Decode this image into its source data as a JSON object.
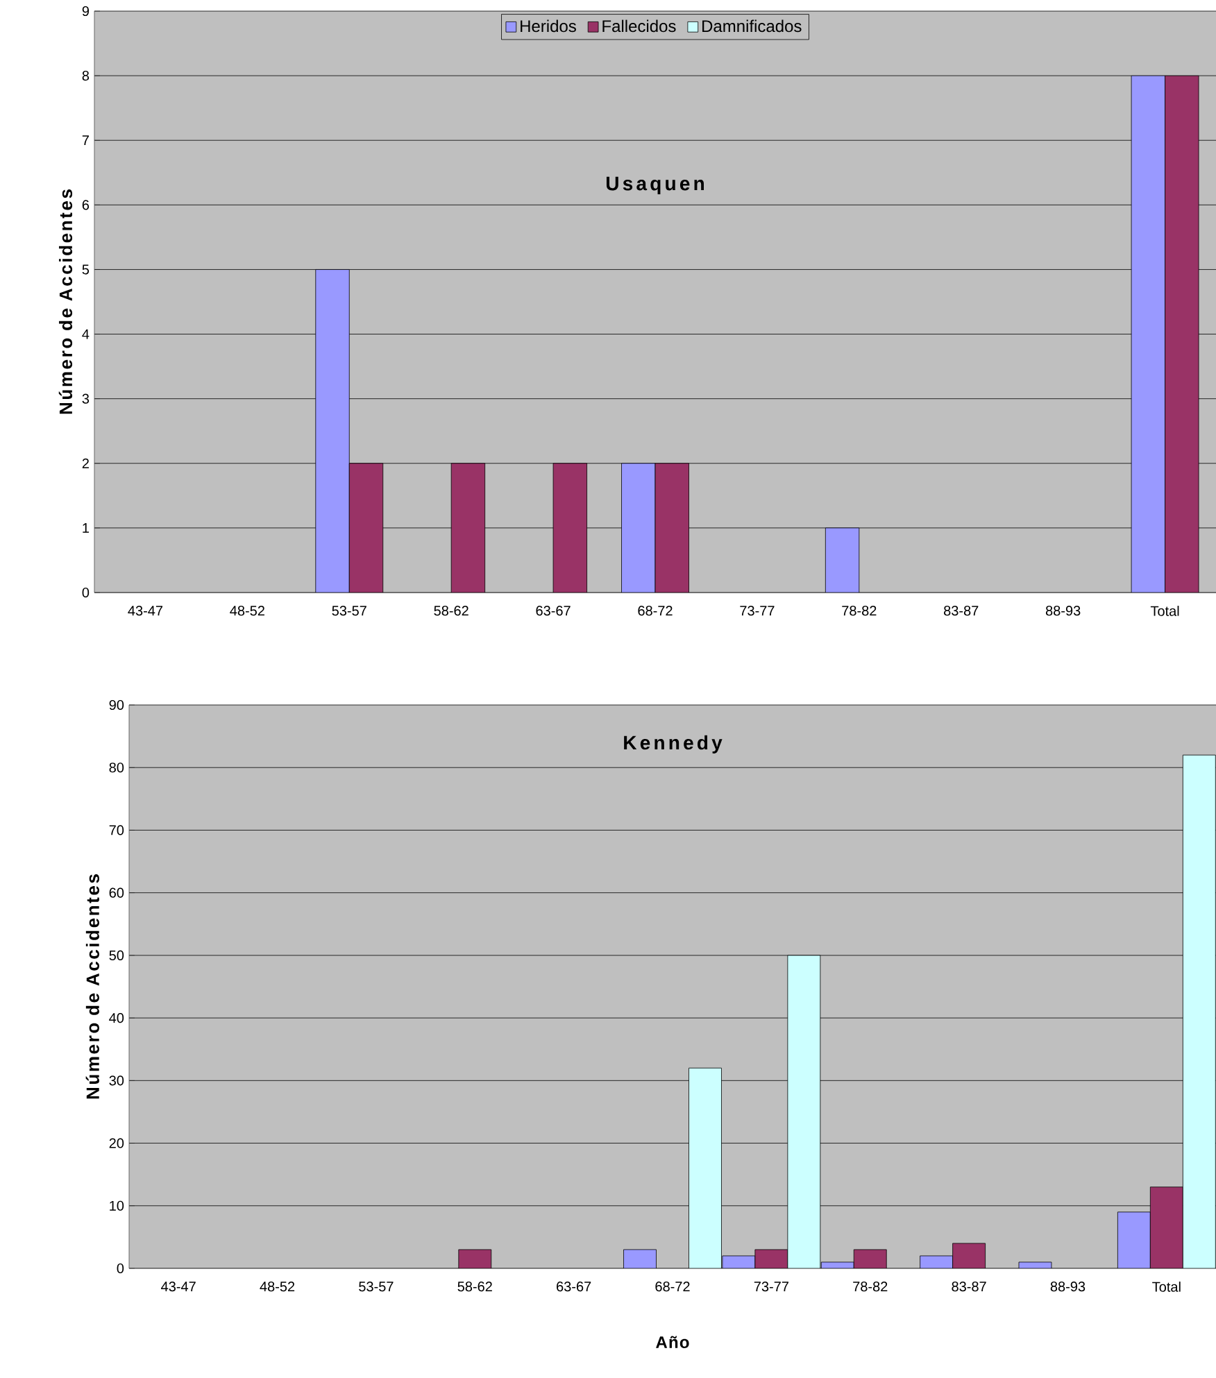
{
  "chart_data": [
    {
      "type": "bar",
      "title": "Usaquen",
      "ylabel": "Número de Accidentes",
      "categories": [
        "43-47",
        "48-52",
        "53-57",
        "58-62",
        "63-67",
        "68-72",
        "73-77",
        "78-82",
        "83-87",
        "88-93",
        "Total"
      ],
      "series": [
        {
          "name": "Heridos",
          "color": "#9999ff",
          "values": [
            null,
            null,
            5,
            null,
            null,
            2,
            null,
            1,
            null,
            null,
            8
          ]
        },
        {
          "name": "Fallecidos",
          "color": "#993366",
          "values": [
            null,
            null,
            2,
            2,
            2,
            2,
            null,
            null,
            null,
            null,
            8
          ]
        },
        {
          "name": "Damnificados",
          "color": "#ccffff",
          "values": [
            null,
            null,
            null,
            null,
            null,
            null,
            null,
            null,
            null,
            null,
            null
          ]
        }
      ],
      "ylim": [
        0,
        9
      ],
      "yticks": [
        0,
        1,
        2,
        3,
        4,
        5,
        6,
        7,
        8,
        9
      ],
      "grid": "y",
      "legend": "top"
    },
    {
      "type": "bar",
      "title": "Kennedy",
      "ylabel": "Número de Accidentes",
      "xlabel": "Año",
      "categories": [
        "43-47",
        "48-52",
        "53-57",
        "58-62",
        "63-67",
        "68-72",
        "73-77",
        "78-82",
        "83-87",
        "88-93",
        "Total"
      ],
      "series": [
        {
          "color": "#9999ff",
          "values": [
            null,
            null,
            null,
            null,
            null,
            3,
            2,
            1,
            2,
            1,
            9
          ]
        },
        {
          "color": "#993366",
          "values": [
            null,
            null,
            null,
            3,
            null,
            null,
            3,
            3,
            4,
            null,
            13
          ]
        },
        {
          "color": "#ccffff",
          "values": [
            null,
            null,
            null,
            null,
            null,
            32,
            50,
            null,
            null,
            null,
            82
          ]
        }
      ],
      "ylim": [
        0,
        90
      ],
      "yticks": [
        0,
        10,
        20,
        30,
        40,
        50,
        60,
        70,
        80,
        90
      ],
      "grid": "y"
    }
  ]
}
